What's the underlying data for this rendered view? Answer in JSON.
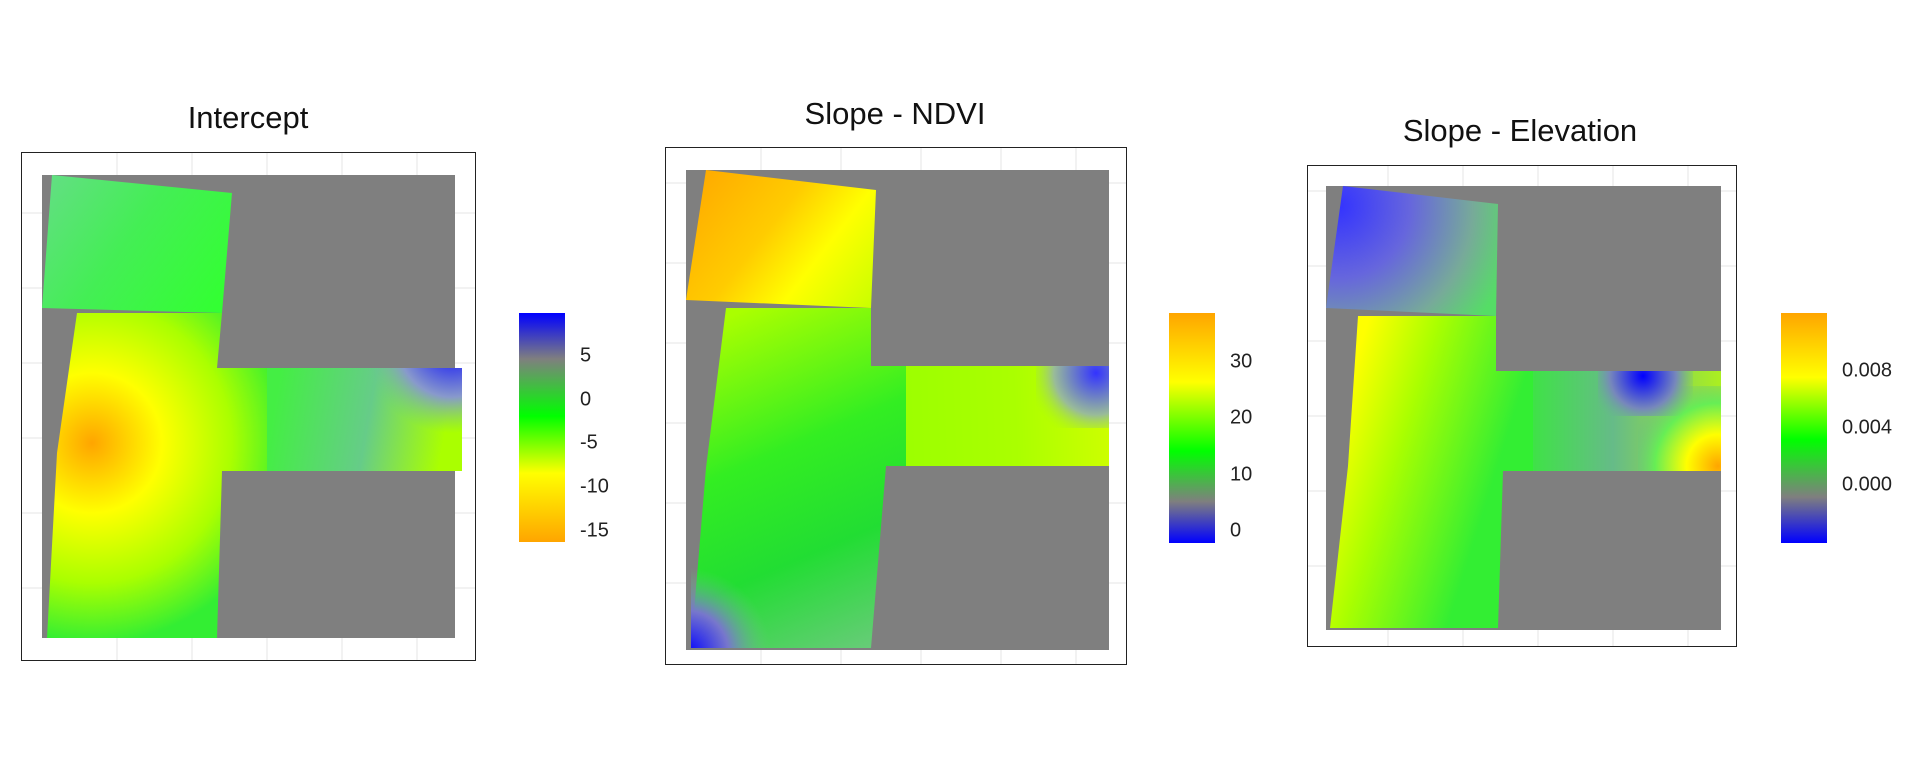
{
  "chart_data": [
    {
      "type": "heatmap",
      "title": "Intercept",
      "xlabel": "",
      "ylabel": "",
      "legend_position": "right",
      "colorbar": {
        "range": [
          -17,
          9
        ],
        "ticks": [
          5,
          0,
          -5,
          -10,
          -15
        ],
        "tick_labels": [
          "5",
          "0",
          "-5",
          "-10",
          "-15"
        ],
        "colors": [
          "#ffa500",
          "#ffff00",
          "#00ff00",
          "#7f7f7f",
          "#0000ff"
        ]
      },
      "background_color": "#7f7f7f"
    },
    {
      "type": "heatmap",
      "title": "Slope - NDVI",
      "xlabel": "",
      "ylabel": "",
      "legend_position": "right",
      "colorbar": {
        "range": [
          -2,
          38
        ],
        "ticks": [
          30,
          20,
          10,
          0
        ],
        "tick_labels": [
          "30",
          "20",
          "10",
          "0"
        ],
        "colors": [
          "#0000ff",
          "#7f7f7f",
          "#00ff00",
          "#ffff00",
          "#ffa500"
        ]
      },
      "background_color": "#7f7f7f"
    },
    {
      "type": "heatmap",
      "title": "Slope - Elevation",
      "xlabel": "",
      "ylabel": "",
      "legend_position": "right",
      "colorbar": {
        "range": [
          -0.0045,
          0.0115
        ],
        "ticks": [
          0.008,
          0.004,
          0.0
        ],
        "tick_labels": [
          "0.008",
          "0.004",
          "0.000"
        ],
        "colors": [
          "#0000ff",
          "#7f7f7f",
          "#00ff00",
          "#ffff00",
          "#ffa500"
        ]
      },
      "background_color": "#7f7f7f"
    }
  ]
}
